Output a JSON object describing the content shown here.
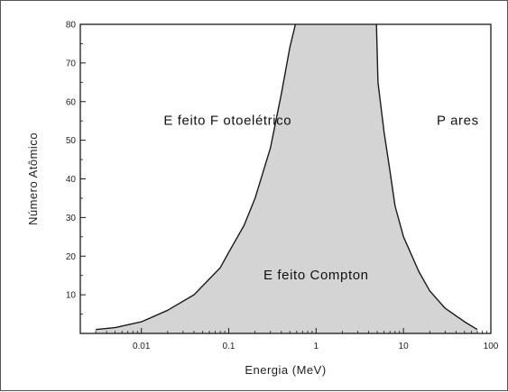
{
  "chart_data": {
    "type": "area",
    "xlabel": "Energia (MeV)",
    "ylabel": "Número Atômico",
    "xscale": "log",
    "xlim": [
      0.002,
      100
    ],
    "ylim": [
      0,
      80
    ],
    "x_ticks": [
      {
        "value": 0.01,
        "label": "0.01"
      },
      {
        "value": 0.1,
        "label": "0.1"
      },
      {
        "value": 1,
        "label": "1"
      },
      {
        "value": 10,
        "label": "10"
      },
      {
        "value": 100,
        "label": "100"
      }
    ],
    "y_ticks": [
      10,
      20,
      30,
      40,
      50,
      60,
      70,
      80
    ],
    "grid": false,
    "fill_color": "#d4d4d4",
    "line_color": "#1a1a1a",
    "boundaries": [
      {
        "name": "photoelectric-compton",
        "points": [
          [
            0.003,
            1
          ],
          [
            0.005,
            1.5
          ],
          [
            0.01,
            3
          ],
          [
            0.02,
            6
          ],
          [
            0.04,
            10
          ],
          [
            0.08,
            17
          ],
          [
            0.1,
            21
          ],
          [
            0.15,
            28
          ],
          [
            0.2,
            35
          ],
          [
            0.3,
            48
          ],
          [
            0.4,
            62
          ],
          [
            0.5,
            74
          ],
          [
            0.58,
            80
          ]
        ]
      },
      {
        "name": "compton-pair",
        "points": [
          [
            4.9,
            80
          ],
          [
            5.1,
            65
          ],
          [
            6,
            52
          ],
          [
            7,
            42
          ],
          [
            8,
            33
          ],
          [
            10,
            25
          ],
          [
            15,
            16
          ],
          [
            20,
            11
          ],
          [
            30,
            6.5
          ],
          [
            50,
            3
          ],
          [
            70,
            1
          ]
        ]
      }
    ],
    "annotations": [
      {
        "key": "photoelectric",
        "text": "E feito F otoelétrico",
        "x": 0.018,
        "y": 54
      },
      {
        "key": "pairs",
        "text": "P ares",
        "x": 24,
        "y": 54
      },
      {
        "key": "compton",
        "text": "E feito Compton",
        "x": 1.0,
        "y": 14
      }
    ]
  }
}
